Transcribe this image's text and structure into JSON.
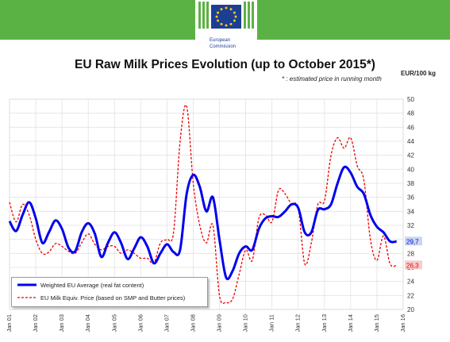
{
  "header": {
    "logo_line1": "European",
    "logo_line2": "Commission"
  },
  "colors": {
    "banner": "#5bb244",
    "series1": "#0000ee",
    "series2": "#ee0000"
  },
  "chart_data": {
    "type": "line",
    "title": "EU Raw Milk Prices Evolution (up to  October 2015*)",
    "subtitle": "* : estimated price in running month",
    "ylabel": "EUR/100 kg",
    "ylim": [
      20,
      50
    ],
    "yticks": [
      20,
      22,
      24,
      26,
      28,
      30,
      32,
      34,
      36,
      38,
      40,
      42,
      44,
      46,
      48,
      50
    ],
    "grid": true,
    "legend_position": "bottom-left",
    "x_tick_labels": [
      "Jan 01",
      "Jan 02",
      "Jan 03",
      "Jan 04",
      "Jan 05",
      "Jan 06",
      "Jan 07",
      "Jan 08",
      "Jan 09",
      "Jan 10",
      "Jan 11",
      "Jan 12",
      "Jan 13",
      "Jan 14",
      "Jan 15",
      "Jan 16"
    ],
    "series": [
      {
        "name": "Weighted EU Average (real fat content)",
        "style": "solid",
        "end_label": "29,7",
        "points": [
          [
            "2001-01",
            32.6
          ],
          [
            "2001-04",
            31.2
          ],
          [
            "2001-07",
            33.5
          ],
          [
            "2001-10",
            35.3
          ],
          [
            "2002-01",
            33.0
          ],
          [
            "2002-04",
            29.5
          ],
          [
            "2002-07",
            31.0
          ],
          [
            "2002-10",
            32.7
          ],
          [
            "2003-01",
            31.5
          ],
          [
            "2003-04",
            28.8
          ],
          [
            "2003-07",
            28.3
          ],
          [
            "2003-10",
            31.0
          ],
          [
            "2004-01",
            32.3
          ],
          [
            "2004-04",
            30.8
          ],
          [
            "2004-07",
            27.5
          ],
          [
            "2004-10",
            29.5
          ],
          [
            "2005-01",
            31.0
          ],
          [
            "2005-04",
            29.5
          ],
          [
            "2005-07",
            27.2
          ],
          [
            "2005-10",
            28.7
          ],
          [
            "2006-01",
            30.3
          ],
          [
            "2006-04",
            29.0
          ],
          [
            "2006-07",
            26.6
          ],
          [
            "2006-10",
            28.0
          ],
          [
            "2007-01",
            29.3
          ],
          [
            "2007-04",
            28.2
          ],
          [
            "2007-07",
            28.5
          ],
          [
            "2007-10",
            36.5
          ],
          [
            "2008-01",
            39.2
          ],
          [
            "2008-04",
            37.5
          ],
          [
            "2008-07",
            34.0
          ],
          [
            "2008-10",
            36.0
          ],
          [
            "2009-01",
            30.0
          ],
          [
            "2009-04",
            24.6
          ],
          [
            "2009-07",
            25.5
          ],
          [
            "2009-10",
            28.0
          ],
          [
            "2010-01",
            29.0
          ],
          [
            "2010-04",
            28.5
          ],
          [
            "2010-07",
            31.5
          ],
          [
            "2010-10",
            33.0
          ],
          [
            "2011-01",
            33.3
          ],
          [
            "2011-04",
            33.2
          ],
          [
            "2011-07",
            34.0
          ],
          [
            "2011-10",
            35.0
          ],
          [
            "2012-01",
            34.5
          ],
          [
            "2012-04",
            31.0
          ],
          [
            "2012-07",
            31.0
          ],
          [
            "2012-10",
            34.2
          ],
          [
            "2013-01",
            34.3
          ],
          [
            "2013-04",
            35.0
          ],
          [
            "2013-07",
            38.0
          ],
          [
            "2013-10",
            40.3
          ],
          [
            "2014-01",
            39.5
          ],
          [
            "2014-04",
            37.5
          ],
          [
            "2014-07",
            36.5
          ],
          [
            "2014-10",
            33.5
          ],
          [
            "2015-01",
            31.8
          ],
          [
            "2015-04",
            31.0
          ],
          [
            "2015-07",
            29.7
          ],
          [
            "2015-10",
            29.7
          ]
        ]
      },
      {
        "name": "EU Milk Equiv. Price (based on SMP and Butter prices)",
        "style": "dashed",
        "end_label": "26,3",
        "points": [
          [
            "2001-01",
            35.3
          ],
          [
            "2001-04",
            32.5
          ],
          [
            "2001-07",
            35.0
          ],
          [
            "2001-10",
            33.5
          ],
          [
            "2002-01",
            30.0
          ],
          [
            "2002-04",
            28.0
          ],
          [
            "2002-07",
            28.2
          ],
          [
            "2002-10",
            29.4
          ],
          [
            "2003-01",
            29.0
          ],
          [
            "2003-04",
            28.3
          ],
          [
            "2003-07",
            28.0
          ],
          [
            "2003-10",
            29.5
          ],
          [
            "2004-01",
            30.8
          ],
          [
            "2004-04",
            29.3
          ],
          [
            "2004-07",
            28.5
          ],
          [
            "2004-10",
            29.0
          ],
          [
            "2005-01",
            29.0
          ],
          [
            "2005-04",
            28.0
          ],
          [
            "2005-07",
            28.5
          ],
          [
            "2005-10",
            28.0
          ],
          [
            "2006-01",
            27.3
          ],
          [
            "2006-04",
            27.3
          ],
          [
            "2006-07",
            26.6
          ],
          [
            "2006-10",
            29.5
          ],
          [
            "2007-01",
            30.0
          ],
          [
            "2007-04",
            31.0
          ],
          [
            "2007-07",
            44.0
          ],
          [
            "2007-10",
            49.0
          ],
          [
            "2008-01",
            38.0
          ],
          [
            "2008-04",
            32.0
          ],
          [
            "2008-07",
            29.5
          ],
          [
            "2008-10",
            32.0
          ],
          [
            "2009-01",
            22.0
          ],
          [
            "2009-04",
            21.0
          ],
          [
            "2009-07",
            21.5
          ],
          [
            "2009-10",
            25.0
          ],
          [
            "2010-01",
            28.5
          ],
          [
            "2010-04",
            27.0
          ],
          [
            "2010-07",
            33.0
          ],
          [
            "2010-10",
            33.5
          ],
          [
            "2011-01",
            32.5
          ],
          [
            "2011-04",
            37.0
          ],
          [
            "2011-07",
            36.5
          ],
          [
            "2011-10",
            35.0
          ],
          [
            "2012-01",
            34.5
          ],
          [
            "2012-04",
            26.5
          ],
          [
            "2012-07",
            29.5
          ],
          [
            "2012-10",
            35.0
          ],
          [
            "2013-01",
            35.5
          ],
          [
            "2013-04",
            42.0
          ],
          [
            "2013-07",
            44.5
          ],
          [
            "2013-10",
            43.0
          ],
          [
            "2014-01",
            44.5
          ],
          [
            "2014-04",
            40.5
          ],
          [
            "2014-07",
            38.5
          ],
          [
            "2014-10",
            30.0
          ],
          [
            "2015-01",
            27.0
          ],
          [
            "2015-04",
            30.5
          ],
          [
            "2015-07",
            26.5
          ],
          [
            "2015-10",
            26.3
          ]
        ]
      }
    ]
  }
}
